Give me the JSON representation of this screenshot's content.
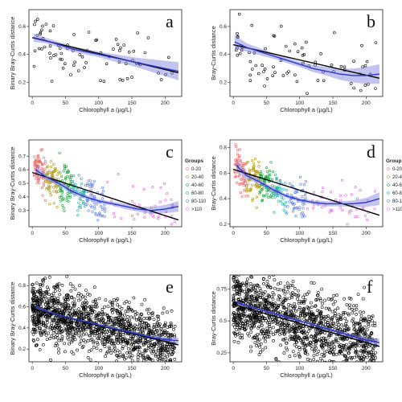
{
  "colors": {
    "band": "#7b7bdc",
    "loess": "#2b39c9",
    "lm": "#000000",
    "groups": [
      "#f06a6a",
      "#b59b17",
      "#1aa13b",
      "#1fb0a6",
      "#5f82e8",
      "#e06de0"
    ]
  },
  "chart_data": [
    {
      "type": "scatter",
      "panel": "a",
      "xlabel": "Chlorophyll a (µg/L)",
      "ylabel": "Binary Bray-Curtis distance",
      "xlim": [
        -5,
        225
      ],
      "ylim": [
        0.1,
        0.72
      ],
      "xticks": [
        0,
        50,
        100,
        150,
        200
      ],
      "yticks": [
        0.2,
        0.4,
        0.6
      ],
      "lm": {
        "x": [
          0,
          220
        ],
        "y": [
          0.52,
          0.27
        ]
      },
      "loess": {
        "x": [
          2,
          20,
          40,
          60,
          80,
          100,
          120,
          140,
          160,
          180,
          200,
          220
        ],
        "y": [
          0.52,
          0.5,
          0.47,
          0.44,
          0.42,
          0.4,
          0.38,
          0.36,
          0.34,
          0.32,
          0.3,
          0.28
        ]
      },
      "band_half": [
        0.03,
        0.02,
        0.02,
        0.02,
        0.02,
        0.02,
        0.025,
        0.03,
        0.035,
        0.045,
        0.055,
        0.065
      ],
      "n_points": 80,
      "seed": 11
    },
    {
      "type": "scatter",
      "panel": "b",
      "xlabel": "Chlorophyll a (µg/L)",
      "ylabel": "Bray-Curtis distance",
      "xlim": [
        -5,
        225
      ],
      "ylim": [
        0.1,
        0.72
      ],
      "xticks": [
        0,
        50,
        100,
        150,
        200
      ],
      "yticks": [
        0.2,
        0.4,
        0.6
      ],
      "lm": {
        "x": [
          0,
          220
        ],
        "y": [
          0.47,
          0.23
        ]
      },
      "loess": {
        "x": [
          2,
          20,
          40,
          60,
          80,
          100,
          120,
          140,
          160,
          180,
          200,
          220
        ],
        "y": [
          0.49,
          0.45,
          0.42,
          0.39,
          0.36,
          0.33,
          0.3,
          0.28,
          0.26,
          0.25,
          0.25,
          0.26
        ]
      },
      "band_half": [
        0.05,
        0.03,
        0.025,
        0.02,
        0.02,
        0.02,
        0.025,
        0.03,
        0.04,
        0.05,
        0.06,
        0.07
      ],
      "n_points": 80,
      "seed": 23
    },
    {
      "type": "scatter",
      "panel": "c",
      "xlabel": "Chlorophyll a (µg/L)",
      "ylabel": "Binary Bray-Curtis distance",
      "xlim": [
        -5,
        225
      ],
      "ylim": [
        0.18,
        0.82
      ],
      "xticks": [
        0,
        50,
        100,
        150,
        200
      ],
      "yticks": [
        0.3,
        0.4,
        0.5,
        0.6,
        0.7
      ],
      "lm": {
        "x": [
          0,
          220
        ],
        "y": [
          0.58,
          0.23
        ]
      },
      "loess": {
        "x": [
          5,
          20,
          40,
          60,
          80,
          100,
          120,
          140,
          160,
          180,
          200,
          220
        ],
        "y": [
          0.6,
          0.55,
          0.5,
          0.44,
          0.4,
          0.37,
          0.35,
          0.33,
          0.31,
          0.3,
          0.31,
          0.33
        ]
      },
      "band_half": [
        0.04,
        0.02,
        0.02,
        0.02,
        0.015,
        0.015,
        0.015,
        0.02,
        0.02,
        0.025,
        0.03,
        0.04
      ],
      "legend": {
        "title": "Groups",
        "labels": [
          "0-20",
          "20-40",
          "40-60",
          "60-80",
          "80-110",
          ">110"
        ],
        "placement": "right"
      },
      "group_x": [
        [
          2,
          20
        ],
        [
          20,
          40
        ],
        [
          40,
          60
        ],
        [
          60,
          80
        ],
        [
          80,
          110
        ],
        [
          110,
          215
        ]
      ],
      "group_n": [
        70,
        70,
        60,
        45,
        60,
        45
      ],
      "seed": 37
    },
    {
      "type": "scatter",
      "panel": "d",
      "xlabel": "Chlorophyll a (µg/L)",
      "ylabel": "Bray-Curtis distance",
      "xlim": [
        -5,
        225
      ],
      "ylim": [
        0.18,
        0.86
      ],
      "xticks": [
        0,
        50,
        100,
        150,
        200
      ],
      "yticks": [
        0.2,
        0.4,
        0.6,
        0.8
      ],
      "lm": {
        "x": [
          0,
          220
        ],
        "y": [
          0.63,
          0.27
        ]
      },
      "loess": {
        "x": [
          5,
          20,
          40,
          60,
          80,
          100,
          120,
          140,
          160,
          180,
          200,
          220
        ],
        "y": [
          0.66,
          0.58,
          0.53,
          0.47,
          0.42,
          0.39,
          0.37,
          0.36,
          0.36,
          0.36,
          0.37,
          0.4
        ]
      },
      "band_half": [
        0.05,
        0.025,
        0.02,
        0.02,
        0.015,
        0.015,
        0.015,
        0.02,
        0.02,
        0.025,
        0.035,
        0.05
      ],
      "legend": {
        "title": "Groups",
        "labels": [
          "0-20",
          "20-40",
          "40-60",
          "60-80",
          "80-110",
          ">110"
        ],
        "placement": "right"
      },
      "group_x": [
        [
          2,
          20
        ],
        [
          20,
          40
        ],
        [
          40,
          60
        ],
        [
          60,
          80
        ],
        [
          80,
          110
        ],
        [
          110,
          215
        ]
      ],
      "group_n": [
        70,
        70,
        60,
        45,
        60,
        45
      ],
      "seed": 53
    },
    {
      "type": "scatter",
      "panel": "e",
      "xlabel": "Chlorophyll a (µg/L)",
      "ylabel": "Binary Bray-Curtis distance",
      "xlim": [
        -5,
        225
      ],
      "ylim": [
        0.08,
        0.9
      ],
      "xticks": [
        0,
        50,
        100,
        150,
        200
      ],
      "yticks": [
        0.2,
        0.4,
        0.6,
        0.8
      ],
      "lm": {
        "x": [
          0,
          220
        ],
        "y": [
          0.58,
          0.24
        ]
      },
      "loess": {
        "x": [
          5,
          20,
          40,
          60,
          80,
          100,
          120,
          140,
          160,
          180,
          200,
          220
        ],
        "y": [
          0.6,
          0.56,
          0.52,
          0.49,
          0.46,
          0.43,
          0.4,
          0.37,
          0.34,
          0.31,
          0.29,
          0.28
        ]
      },
      "band_half": [
        0.02,
        0.01,
        0.01,
        0.01,
        0.01,
        0.01,
        0.01,
        0.012,
        0.015,
        0.02,
        0.025,
        0.03
      ],
      "n_points": 1400,
      "seed": 71
    },
    {
      "type": "scatter",
      "panel": "f",
      "xlabel": "Chlorophyll a (µg/L)",
      "ylabel": "Bray-Curtis distance",
      "xlim": [
        -5,
        225
      ],
      "ylim": [
        0.18,
        0.86
      ],
      "xticks": [
        0,
        50,
        100,
        150,
        200
      ],
      "yticks": [
        0.25,
        0.5,
        0.75
      ],
      "lm": {
        "x": [
          0,
          220
        ],
        "y": [
          0.63,
          0.3
        ]
      },
      "loess": {
        "x": [
          5,
          20,
          40,
          60,
          80,
          100,
          120,
          140,
          160,
          180,
          200,
          220
        ],
        "y": [
          0.64,
          0.62,
          0.59,
          0.56,
          0.53,
          0.5,
          0.47,
          0.44,
          0.41,
          0.38,
          0.35,
          0.33
        ]
      },
      "band_half": [
        0.02,
        0.01,
        0.01,
        0.01,
        0.01,
        0.01,
        0.01,
        0.012,
        0.015,
        0.02,
        0.025,
        0.03
      ],
      "n_points": 1400,
      "seed": 89
    }
  ]
}
